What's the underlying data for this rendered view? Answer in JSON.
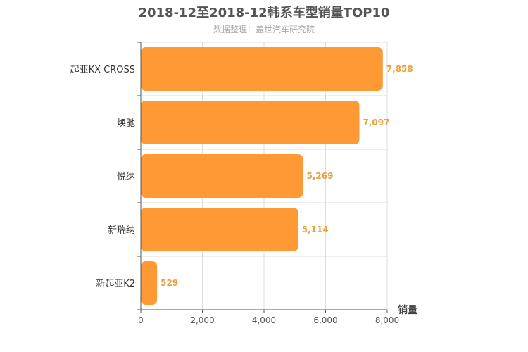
{
  "chart_data": {
    "type": "bar",
    "orientation": "horizontal",
    "title": "2018-12至2018-12韩系车型销量TOP10",
    "subtitle": "数据整理：盖世汽车研究院",
    "categories": [
      "起亚KX CROSS",
      "焕驰",
      "悦纳",
      "新瑞纳",
      "新起亚K2"
    ],
    "values": [
      7858,
      7097,
      5269,
      5114,
      529
    ],
    "value_labels": [
      "7,858",
      "7,097",
      "5,269",
      "5,114",
      "529"
    ],
    "xlabel": "销量",
    "ylabel": "",
    "xlim": [
      0,
      8000
    ],
    "xticks": [
      0,
      2000,
      4000,
      6000,
      8000
    ],
    "xtick_labels": [
      "0",
      "2,000",
      "4,000",
      "6,000",
      "8,000"
    ],
    "grid": true,
    "colors": {
      "bar": "#ff9933",
      "value_label": "#e8a040"
    }
  }
}
